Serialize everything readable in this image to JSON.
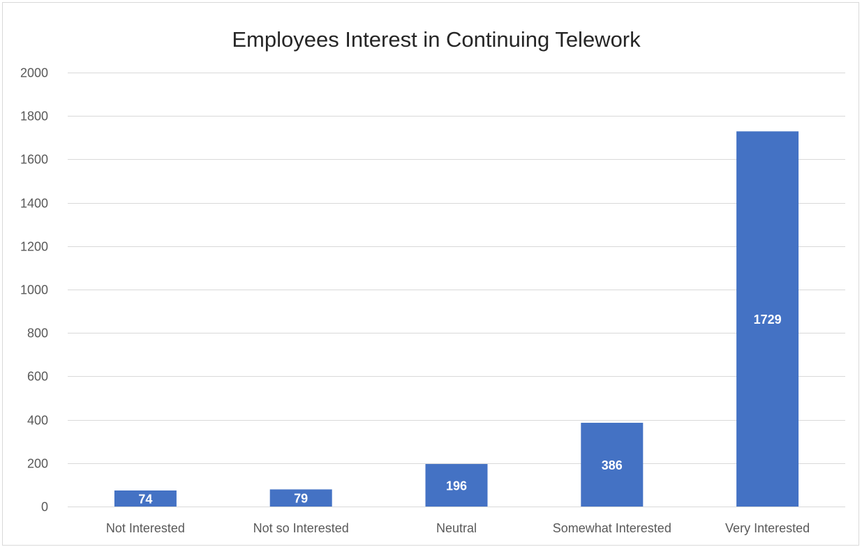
{
  "chart_data": {
    "type": "bar",
    "title": "Employees Interest in Continuing Telework",
    "xlabel": "",
    "ylabel": "",
    "categories": [
      "Not Interested",
      "Not so Interested",
      "Neutral",
      "Somewhat Interested",
      "Very Interested"
    ],
    "values": [
      74,
      79,
      196,
      386,
      1729
    ],
    "data_labels": [
      "74",
      "79",
      "196",
      "386",
      "1729"
    ],
    "ylim": [
      0,
      2000
    ],
    "yticks": [
      0,
      200,
      400,
      600,
      800,
      1000,
      1200,
      1400,
      1600,
      1800,
      2000
    ],
    "grid": true,
    "legend": "none",
    "colors": {
      "bar": "#4472C4",
      "gridline": "#d9d9d9",
      "axis_text": "#595959",
      "title_text": "#262626",
      "data_label_text": "#ffffff"
    }
  }
}
